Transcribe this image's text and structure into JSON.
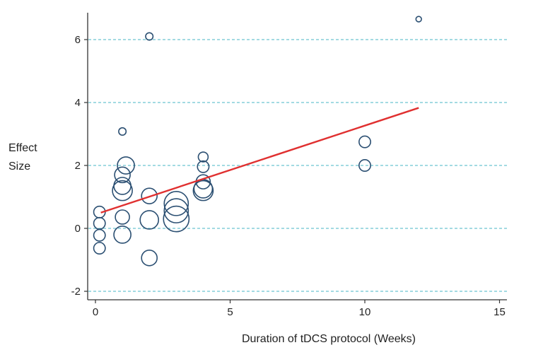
{
  "chart_data": {
    "type": "scatter",
    "subtype": "bubble-meta-regression",
    "title": "",
    "xlabel": "Duration of tDCS protocol (Weeks)",
    "ylabel_lines": [
      "Effect",
      "Size"
    ],
    "xlim": [
      -0.3,
      15.3
    ],
    "ylim": [
      -2.25,
      6.9
    ],
    "xticks": [
      0,
      5,
      10,
      15
    ],
    "yticks": [
      -2,
      0,
      2,
      4,
      6
    ],
    "grid": "horizontal dashed",
    "colors": {
      "marker": "#2b4f72",
      "fit_line": "#e03030",
      "grid": "#6cc3d0",
      "axis": "#333333"
    },
    "points": [
      {
        "x": 0.15,
        "y": 0.52,
        "weight": 2.2
      },
      {
        "x": 0.15,
        "y": 0.16,
        "weight": 2.2
      },
      {
        "x": 0.15,
        "y": -0.22,
        "weight": 2.2
      },
      {
        "x": 0.15,
        "y": -0.63,
        "weight": 2.2
      },
      {
        "x": 1,
        "y": 3.08,
        "weight": 0.9
      },
      {
        "x": 1.13,
        "y": 2.0,
        "weight": 4.8
      },
      {
        "x": 1,
        "y": 1.7,
        "weight": 4.0
      },
      {
        "x": 1,
        "y": 1.35,
        "weight": 4.8
      },
      {
        "x": 1,
        "y": 1.2,
        "weight": 6.5
      },
      {
        "x": 1,
        "y": 0.36,
        "weight": 3.3
      },
      {
        "x": 1,
        "y": -0.2,
        "weight": 4.8
      },
      {
        "x": 2,
        "y": 6.1,
        "weight": 0.9
      },
      {
        "x": 2,
        "y": 1.03,
        "weight": 4.0
      },
      {
        "x": 2,
        "y": 0.27,
        "weight": 5.6
      },
      {
        "x": 2,
        "y": -0.94,
        "weight": 4.0
      },
      {
        "x": 3,
        "y": 0.79,
        "weight": 9.6
      },
      {
        "x": 3,
        "y": 0.56,
        "weight": 9.6
      },
      {
        "x": 3,
        "y": 0.3,
        "weight": 10.8
      },
      {
        "x": 4,
        "y": 2.27,
        "weight": 1.6
      },
      {
        "x": 4,
        "y": 1.96,
        "weight": 2.2
      },
      {
        "x": 4,
        "y": 1.48,
        "weight": 3.3
      },
      {
        "x": 4,
        "y": 1.26,
        "weight": 5.6
      },
      {
        "x": 4,
        "y": 1.2,
        "weight": 6.5
      },
      {
        "x": 10,
        "y": 2.75,
        "weight": 2.2
      },
      {
        "x": 10,
        "y": 2.0,
        "weight": 2.2
      },
      {
        "x": 12,
        "y": 6.65,
        "weight": 0.5
      }
    ],
    "fit_line": {
      "x": [
        0.2,
        12
      ],
      "y": [
        0.5,
        3.83
      ]
    }
  }
}
